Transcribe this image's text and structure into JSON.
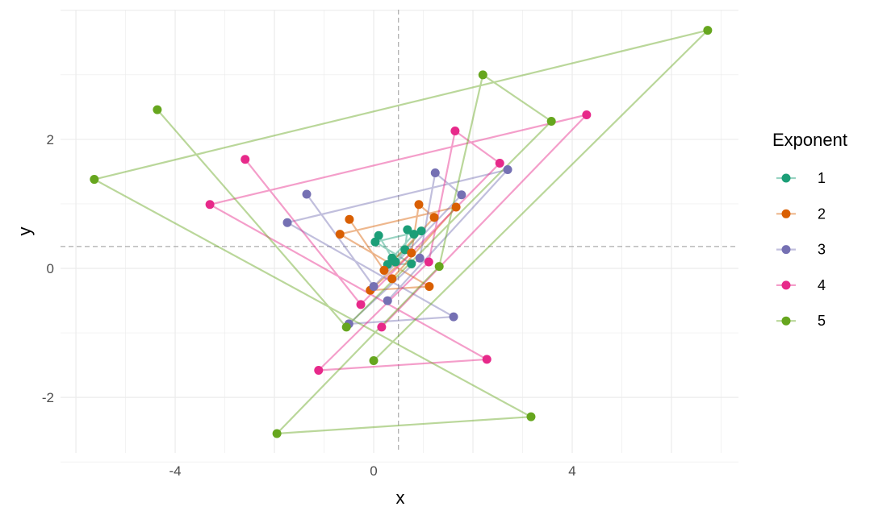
{
  "chart_data": {
    "type": "line",
    "xlabel": "x",
    "ylabel": "y",
    "xlim": [
      -6.31,
      7.35
    ],
    "ylim": [
      -2.86,
      4.01
    ],
    "xticks": [
      -4,
      0,
      4
    ],
    "yticks": [
      -2,
      0,
      2
    ],
    "grid": true,
    "reference_lines": {
      "vline_x": 0.5,
      "hline_y": 0.34
    },
    "legend": {
      "title": "Exponent",
      "placement": "right"
    },
    "series": [
      {
        "name": "1",
        "color": "#1b9e77",
        "points": [
          [
            0.1,
            0.51
          ],
          [
            0.37,
            0.16
          ],
          [
            0.81,
            0.53
          ],
          [
            0.68,
            0.6
          ],
          [
            0.63,
            0.29
          ],
          [
            0.28,
            0.06
          ],
          [
            0.76,
            0.07
          ],
          [
            0.03,
            0.41
          ],
          [
            0.96,
            0.58
          ],
          [
            0.44,
            0.1
          ]
        ]
      },
      {
        "name": "2",
        "color": "#d95f02",
        "points": [
          [
            -0.49,
            0.76
          ],
          [
            0.21,
            -0.03
          ],
          [
            1.22,
            0.79
          ],
          [
            0.91,
            0.99
          ],
          [
            0.76,
            0.24
          ],
          [
            -0.07,
            -0.34
          ],
          [
            1.12,
            -0.28
          ],
          [
            -0.68,
            0.53
          ],
          [
            1.66,
            0.95
          ],
          [
            0.37,
            -0.16
          ]
        ]
      },
      {
        "name": "3",
        "color": "#7570b3",
        "points": [
          [
            -1.35,
            1.15
          ],
          [
            0,
            -0.28
          ],
          [
            1.77,
            1.14
          ],
          [
            1.24,
            1.48
          ],
          [
            0.93,
            0.16
          ],
          [
            -0.5,
            -0.86
          ],
          [
            1.61,
            -0.75
          ],
          [
            -1.74,
            0.71
          ],
          [
            2.7,
            1.53
          ],
          [
            0.28,
            -0.5
          ]
        ]
      },
      {
        "name": "4",
        "color": "#e7298a",
        "points": [
          [
            -2.59,
            1.69
          ],
          [
            -0.26,
            -0.56
          ],
          [
            2.54,
            1.63
          ],
          [
            1.64,
            2.13
          ],
          [
            1.11,
            0.1
          ],
          [
            -1.11,
            -1.58
          ],
          [
            2.28,
            -1.41
          ],
          [
            -3.3,
            0.99
          ],
          [
            4.29,
            2.38
          ],
          [
            0.16,
            -0.91
          ]
        ]
      },
      {
        "name": "5",
        "color": "#66a61e",
        "points": [
          [
            -4.36,
            2.46
          ],
          [
            -0.55,
            -0.91
          ],
          [
            3.58,
            2.28
          ],
          [
            2.2,
            3.0
          ],
          [
            1.32,
            0.03
          ],
          [
            -1.95,
            -2.56
          ],
          [
            3.17,
            -2.3
          ],
          [
            -5.63,
            1.38
          ],
          [
            6.73,
            3.69
          ],
          [
            0,
            -1.43
          ]
        ]
      }
    ]
  }
}
